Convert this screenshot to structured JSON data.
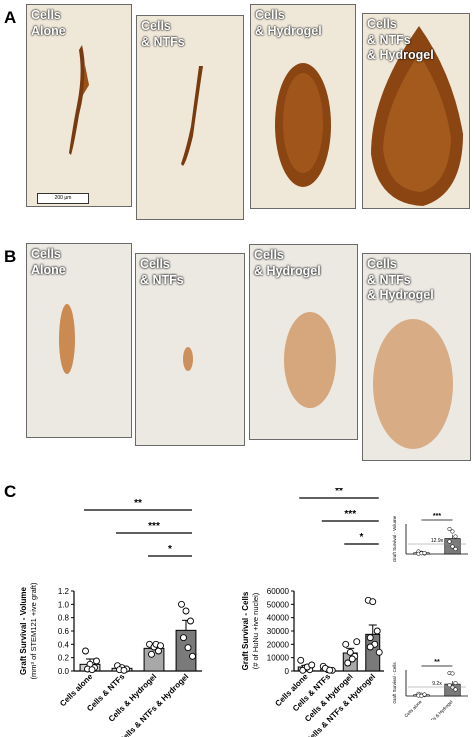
{
  "panels": {
    "A": {
      "letter": "A",
      "tiles": [
        {
          "label": "Cells\nAlone"
        },
        {
          "label": "Cells\n& NTFs"
        },
        {
          "label": "Cells\n& Hydrogel"
        },
        {
          "label": "Cells\n& NTFs\n& Hydrogel"
        }
      ],
      "scalebar": "200 µm"
    },
    "B": {
      "letter": "B",
      "tiles": [
        {
          "label": "Cells\nAlone"
        },
        {
          "label": "Cells\n& NTFs"
        },
        {
          "label": "Cells\n& Hydrogel"
        },
        {
          "label": "Cells\n& NTFs\n& Hydrogel"
        }
      ]
    },
    "C": {
      "letter": "C"
    }
  },
  "colors": {
    "stain_dark": "#7a3a10",
    "stain_mid": "#b5651d",
    "bar_light": "#d0d0d0",
    "bar_mid": "#a8a8a8",
    "bar_dark": "#7a7a7a"
  },
  "chart_data": [
    {
      "type": "bar",
      "ylabel_line1": "Graft Survival - Volume",
      "ylabel_line2": "(mm³ of STEM121 +ive graft)",
      "categories": [
        "Cells alone",
        "Cells & NTFs",
        "Cells & Hydrogel",
        "Cells & NTFs & Hydrogel"
      ],
      "values": [
        0.1,
        0.04,
        0.34,
        0.61
      ],
      "errors": [
        0.08,
        0.03,
        0.06,
        0.15
      ],
      "points": [
        [
          0.3,
          0.1,
          0.05,
          0.03,
          0.02,
          0.15
        ],
        [
          0.08,
          0.05,
          0.03,
          0.02,
          0.01
        ],
        [
          0.4,
          0.36,
          0.3,
          0.25,
          0.4,
          0.38
        ],
        [
          1.0,
          0.9,
          0.75,
          0.5,
          0.35,
          0.22
        ]
      ],
      "yticks": [
        "0.0",
        "0.2",
        "0.4",
        "0.6",
        "0.8",
        "1.0",
        "1.2"
      ],
      "ylim": [
        0,
        1.2
      ],
      "significance": [
        {
          "label": "**",
          "from": 0,
          "to": 3,
          "level": 0
        },
        {
          "label": "***",
          "from": 1,
          "to": 3,
          "level": 1
        },
        {
          "label": "*",
          "from": 2,
          "to": 3,
          "level": 2
        }
      ]
    },
    {
      "type": "bar",
      "ylabel_line1": "Graft Survival - Cells",
      "ylabel_line2": "(# of HuNu +ive nuclei)",
      "categories": [
        "Cells alone",
        "Cells & NTFs",
        "Cells & Hydrogel",
        "Cells & NTFs & Hydrogel"
      ],
      "values": [
        3000,
        1500,
        13500,
        27500
      ],
      "errors": [
        1200,
        800,
        3500,
        7000
      ],
      "points": [
        [
          8000,
          2500,
          1000,
          500,
          3000,
          4500
        ],
        [
          3500,
          1000,
          500,
          2000,
          600
        ],
        [
          20000,
          14000,
          11000,
          6000,
          9000,
          22000
        ],
        [
          53000,
          52000,
          30000,
          25000,
          20000,
          14000,
          18000
        ]
      ],
      "yticks": [
        "0",
        "10000",
        "20000",
        "30000",
        "40000",
        "50000",
        "60000"
      ],
      "ylim": [
        0,
        60000
      ],
      "significance": [
        {
          "label": "**",
          "from": 0,
          "to": 3,
          "level": 0
        },
        {
          "label": "***",
          "from": 1,
          "to": 3,
          "level": 1
        },
        {
          "label": "*",
          "from": 2,
          "to": 3,
          "level": 2
        }
      ]
    },
    {
      "type": "bar",
      "ylabel": "Graft Survival - Volume",
      "categories": [
        "Cells alone",
        "Cells & NTFs & Hydrogel"
      ],
      "values": [
        0.05,
        0.62
      ],
      "errors": [
        0.03,
        0.15
      ],
      "points": [
        [
          0.1,
          0.05,
          0.02,
          0.01,
          0.03,
          0.04
        ],
        [
          1.0,
          0.9,
          0.7,
          0.5,
          0.3,
          0.2
        ]
      ],
      "ylim": [
        0,
        1.2
      ],
      "annotation": "12.9x",
      "significance": [
        {
          "label": "***",
          "from": 0,
          "to": 1,
          "level": 0
        }
      ]
    },
    {
      "type": "bar",
      "ylabel": "Graft Survival - Cells",
      "categories": [
        "Cells alone",
        "Cells & NTFs & Hydrogel"
      ],
      "values": [
        3000,
        27500
      ],
      "errors": [
        1500,
        7000
      ],
      "points": [
        [
          5000,
          3000,
          2000,
          1000,
          500,
          3500
        ],
        [
          53000,
          52000,
          30000,
          25000,
          20000,
          15000
        ]
      ],
      "ylim": [
        0,
        60000
      ],
      "annotation": "9.2x",
      "significance": [
        {
          "label": "**",
          "from": 0,
          "to": 1,
          "level": 0
        }
      ]
    }
  ]
}
